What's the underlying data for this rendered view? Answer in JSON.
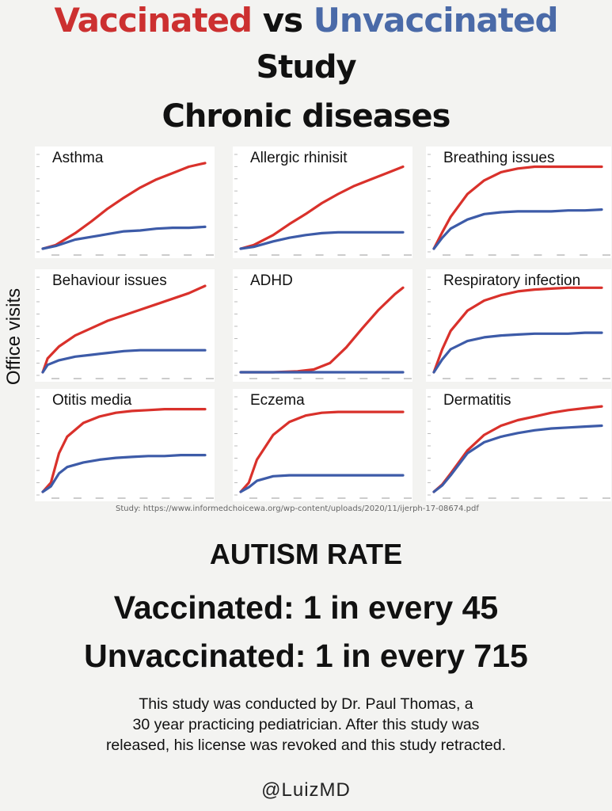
{
  "header": {
    "vaccinated": "Vaccinated",
    "vs": "vs",
    "unvaccinated": "Unvaccinated",
    "line2": "Study",
    "line3": "Chronic diseases"
  },
  "y_axis_label": "Office visits",
  "colors": {
    "vaccinated": "#d9312b",
    "unvaccinated": "#3d5ba8",
    "panel": "#ffffff",
    "background": "#f3f3f1"
  },
  "chart_data": [
    {
      "type": "line",
      "title": "Asthma",
      "x": [
        0,
        0.08,
        0.2,
        0.3,
        0.4,
        0.5,
        0.6,
        0.7,
        0.8,
        0.9,
        1
      ],
      "series": [
        {
          "name": "Vaccinated",
          "values": [
            0,
            0.04,
            0.17,
            0.3,
            0.44,
            0.56,
            0.67,
            0.76,
            0.83,
            0.9,
            0.94
          ]
        },
        {
          "name": "Unvaccinated",
          "values": [
            0,
            0.03,
            0.1,
            0.13,
            0.16,
            0.19,
            0.2,
            0.22,
            0.23,
            0.23,
            0.24
          ]
        }
      ]
    },
    {
      "type": "line",
      "title": "Allergic rhinisit",
      "x": [
        0,
        0.08,
        0.2,
        0.3,
        0.4,
        0.5,
        0.6,
        0.7,
        0.8,
        0.9,
        1
      ],
      "series": [
        {
          "name": "Vaccinated",
          "values": [
            0,
            0.04,
            0.15,
            0.27,
            0.38,
            0.5,
            0.6,
            0.69,
            0.76,
            0.83,
            0.9
          ]
        },
        {
          "name": "Unvaccinated",
          "values": [
            0,
            0.02,
            0.08,
            0.12,
            0.15,
            0.17,
            0.18,
            0.18,
            0.18,
            0.18,
            0.18
          ]
        }
      ]
    },
    {
      "type": "line",
      "title": "Breathing issues",
      "x": [
        0,
        0.05,
        0.1,
        0.2,
        0.3,
        0.4,
        0.5,
        0.6,
        0.7,
        0.8,
        0.9,
        1
      ],
      "series": [
        {
          "name": "Vaccinated",
          "values": [
            0,
            0.18,
            0.35,
            0.6,
            0.75,
            0.84,
            0.88,
            0.9,
            0.9,
            0.9,
            0.9,
            0.9
          ]
        },
        {
          "name": "Unvaccinated",
          "values": [
            0,
            0.12,
            0.22,
            0.32,
            0.38,
            0.4,
            0.41,
            0.41,
            0.41,
            0.42,
            0.42,
            0.43
          ]
        }
      ]
    },
    {
      "type": "line",
      "title": "Behaviour issues",
      "x": [
        0,
        0.03,
        0.1,
        0.2,
        0.3,
        0.4,
        0.5,
        0.6,
        0.7,
        0.8,
        0.9,
        1
      ],
      "series": [
        {
          "name": "Vaccinated",
          "values": [
            0,
            0.15,
            0.28,
            0.4,
            0.48,
            0.56,
            0.62,
            0.68,
            0.74,
            0.8,
            0.86,
            0.94
          ]
        },
        {
          "name": "Unvaccinated",
          "values": [
            0,
            0.08,
            0.13,
            0.17,
            0.19,
            0.21,
            0.23,
            0.24,
            0.24,
            0.24,
            0.24,
            0.24
          ]
        }
      ]
    },
    {
      "type": "line",
      "title": "ADHD",
      "x": [
        0,
        0.2,
        0.35,
        0.45,
        0.55,
        0.65,
        0.75,
        0.85,
        0.95,
        1
      ],
      "series": [
        {
          "name": "Vaccinated",
          "values": [
            0,
            0,
            0.01,
            0.03,
            0.1,
            0.27,
            0.48,
            0.68,
            0.85,
            0.92
          ]
        },
        {
          "name": "Unvaccinated",
          "values": [
            0,
            0,
            0,
            0,
            0,
            0,
            0,
            0,
            0,
            0
          ]
        }
      ]
    },
    {
      "type": "line",
      "title": "Respiratory infection",
      "x": [
        0,
        0.05,
        0.1,
        0.2,
        0.3,
        0.4,
        0.5,
        0.6,
        0.7,
        0.8,
        0.9,
        1
      ],
      "series": [
        {
          "name": "Vaccinated",
          "values": [
            0,
            0.25,
            0.45,
            0.67,
            0.78,
            0.84,
            0.88,
            0.9,
            0.91,
            0.92,
            0.92,
            0.92
          ]
        },
        {
          "name": "Unvaccinated",
          "values": [
            0,
            0.14,
            0.25,
            0.34,
            0.38,
            0.4,
            0.41,
            0.42,
            0.42,
            0.42,
            0.43,
            0.43
          ]
        }
      ]
    },
    {
      "type": "line",
      "title": "Otitis media",
      "x": [
        0,
        0.05,
        0.1,
        0.15,
        0.25,
        0.35,
        0.45,
        0.55,
        0.65,
        0.75,
        0.85,
        1
      ],
      "series": [
        {
          "name": "Vaccinated",
          "values": [
            0,
            0.1,
            0.42,
            0.6,
            0.75,
            0.82,
            0.86,
            0.88,
            0.89,
            0.9,
            0.9,
            0.9
          ]
        },
        {
          "name": "Unvaccinated",
          "values": [
            0,
            0.06,
            0.2,
            0.27,
            0.32,
            0.35,
            0.37,
            0.38,
            0.39,
            0.39,
            0.4,
            0.4
          ]
        }
      ]
    },
    {
      "type": "line",
      "title": "Eczema",
      "x": [
        0,
        0.05,
        0.1,
        0.2,
        0.3,
        0.4,
        0.5,
        0.6,
        0.7,
        0.8,
        0.9,
        1
      ],
      "series": [
        {
          "name": "Vaccinated",
          "values": [
            0,
            0.1,
            0.35,
            0.62,
            0.76,
            0.83,
            0.86,
            0.87,
            0.87,
            0.87,
            0.87,
            0.87
          ]
        },
        {
          "name": "Unvaccinated",
          "values": [
            0,
            0.05,
            0.12,
            0.17,
            0.18,
            0.18,
            0.18,
            0.18,
            0.18,
            0.18,
            0.18,
            0.18
          ]
        }
      ]
    },
    {
      "type": "line",
      "title": "Dermatitis",
      "x": [
        0,
        0.05,
        0.1,
        0.2,
        0.3,
        0.4,
        0.5,
        0.6,
        0.7,
        0.8,
        0.9,
        1
      ],
      "series": [
        {
          "name": "Vaccinated",
          "values": [
            0,
            0.08,
            0.2,
            0.45,
            0.62,
            0.72,
            0.78,
            0.82,
            0.86,
            0.89,
            0.91,
            0.93
          ]
        },
        {
          "name": "Unvaccinated",
          "values": [
            0,
            0.07,
            0.18,
            0.42,
            0.54,
            0.6,
            0.64,
            0.67,
            0.69,
            0.7,
            0.71,
            0.72
          ]
        }
      ]
    }
  ],
  "source_text": "Study: https://www.informedchoicewa.org/wp-content/uploads/2020/11/ijerph-17-08674.pdf",
  "autism": {
    "title": "AUTISM RATE",
    "vaccinated": "Vaccinated: 1 in every 45",
    "unvaccinated": "Unvaccinated: 1 in every 715"
  },
  "note": {
    "line1": "This study was conducted by Dr. Paul Thomas, a",
    "line2": "30 year practicing pediatrician. After this study was",
    "line3": "released, his license was revoked and this study retracted."
  },
  "handle": "@LuizMD"
}
